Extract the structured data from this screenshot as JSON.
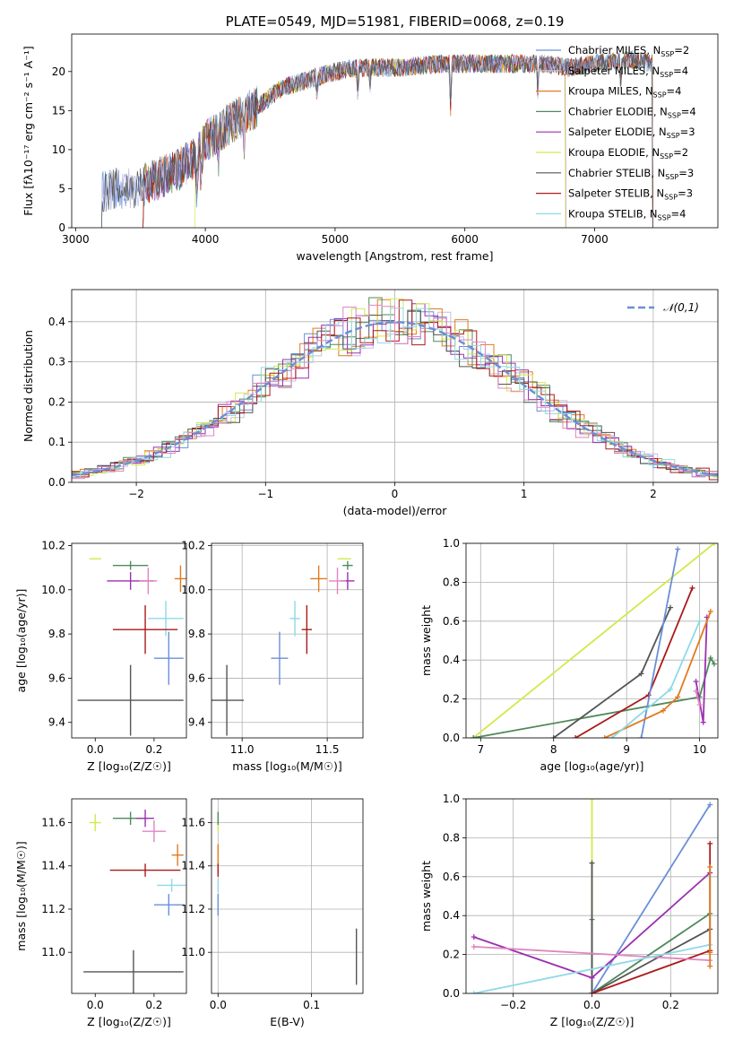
{
  "colors": {
    "chabrier_miles": "#6a8fd8",
    "salpeter_miles": "#c8bfe0",
    "kroupa_miles": "#e07b20",
    "chabrier_elodie": "#4f8a5b",
    "salpeter_elodie": "#9b30b0",
    "kroupa_elodie": "#d4e84c",
    "chabrier_stelib": "#555555",
    "salpeter_stelib": "#aa1a1a",
    "kroupa_stelib": "#8fd9e6",
    "pink": "#e085c0",
    "grid": "#b0b0b0",
    "gaussian": "#6a8fd8"
  },
  "chart_data": [
    {
      "id": "spectrum",
      "type": "line",
      "title": "PLATE=0549, MJD=51981, FIBERID=0068, z=0.19",
      "xlabel": "wavelength [Angstrom, rest frame]",
      "ylabel": "Flux [f",
      "ylabel_full": "Flux [fλ10⁻¹⁷ erg cm⁻² s⁻¹ A⁻¹]",
      "xlim": [
        2970,
        7950
      ],
      "ylim": [
        0,
        24.8
      ],
      "xticks": [
        3000,
        4000,
        5000,
        6000,
        7000
      ],
      "yticks": [
        0,
        5,
        10,
        15,
        20
      ],
      "grid": false,
      "legend_position": "right",
      "legend": [
        "Chabrier MILES, N_SSP=2",
        "Salpeter MILES, N_SSP=4",
        "Kroupa MILES, N_SSP=4",
        "Chabrier ELODIE, N_SSP=4",
        "Salpeter ELODIE, N_SSP=3",
        "Kroupa ELODIE, N_SSP=2",
        "Chabrier STELIB, N_SSP=3",
        "Salpeter STELIB, N_SSP=3",
        "Kroupa STELIB, N_SSP=4"
      ],
      "legend_labels": [
        {
          "text": "Chabrier MILES, N",
          "n": "2"
        },
        {
          "text": "Salpeter MILES, N",
          "n": "4"
        },
        {
          "text": "Kroupa MILES, N",
          "n": "4"
        },
        {
          "text": "Chabrier ELODIE, N",
          "n": "4"
        },
        {
          "text": "Salpeter ELODIE, N",
          "n": "3"
        },
        {
          "text": "Kroupa ELODIE, N",
          "n": "2"
        },
        {
          "text": "Chabrier STELIB, N",
          "n": "3"
        },
        {
          "text": "Salpeter STELIB, N",
          "n": "3"
        },
        {
          "text": "Kroupa STELIB, N",
          "n": "4"
        }
      ],
      "legend_colors": [
        "#6a8fd8",
        "#c8bfe0",
        "#e07b20",
        "#4f8a5b",
        "#9b30b0",
        "#d4e84c",
        "#555555",
        "#aa1a1a",
        "#8fd9e6"
      ],
      "continuum": {
        "x": [
          3200,
          3300,
          3450,
          3600,
          3800,
          3950,
          4000,
          4200,
          4400,
          4600,
          4800,
          5000,
          5200,
          5500,
          5800,
          6000,
          6300,
          6600,
          6800,
          7000,
          7300,
          7450
        ],
        "y": [
          4.5,
          5.0,
          5.0,
          6.0,
          7.5,
          9.5,
          11.0,
          13.5,
          15.5,
          18.0,
          19.0,
          20.0,
          20.5,
          20.5,
          21.0,
          21.0,
          21.0,
          21.0,
          20.5,
          21.0,
          21.5,
          21.0
        ]
      },
      "model_ranges": [
        [
          3200,
          7450
        ],
        [
          3200,
          7450
        ],
        [
          3520,
          7450
        ],
        [
          3520,
          7450
        ],
        [
          3520,
          6780
        ],
        [
          3920,
          6780
        ],
        [
          3200,
          7450
        ],
        [
          3520,
          7450
        ],
        [
          3520,
          7450
        ]
      ]
    },
    {
      "id": "residuals",
      "type": "histogram",
      "xlabel": "(data-model)/error",
      "ylabel": "Normed distribution",
      "xlim": [
        -2.5,
        2.5
      ],
      "ylim": [
        0,
        0.48
      ],
      "xticks": [
        -2,
        -1,
        0,
        1,
        2
      ],
      "xtick_labels": [
        "−2",
        "−1",
        "0",
        "1",
        "2"
      ],
      "yticks": [
        0.0,
        0.1,
        0.2,
        0.3,
        0.4
      ],
      "ytick_labels": [
        "0.0",
        "0.1",
        "0.2",
        "0.3",
        "0.4"
      ],
      "grid": true,
      "bin_width": 0.1,
      "legend": [
        "𝒩(0,1)"
      ],
      "legend_position": "top-right",
      "gaussian": {
        "mean": 0,
        "sigma": 1
      }
    },
    {
      "id": "age_vs_Z",
      "type": "scatter",
      "xlabel": "Z [log₁₀(Z/Z☉)]",
      "ylabel": "age  [log₁₀(age/yr)]",
      "xlim": [
        -0.08,
        0.31
      ],
      "ylim": [
        9.33,
        10.21
      ],
      "xticks": [
        0.0,
        0.2
      ],
      "xtick_labels": [
        "0.0",
        "0.2"
      ],
      "yticks": [
        9.4,
        9.6,
        9.8,
        10.0,
        10.2
      ],
      "ytick_labels": [
        "9.4",
        "9.6",
        "9.8",
        "10.0",
        "10.2"
      ],
      "grid": false,
      "points": [
        {
          "x": 0.0,
          "xerr": 0.02,
          "y": 10.14,
          "yerr": 0.0,
          "color": "#d4e84c"
        },
        {
          "x": 0.12,
          "xerr": 0.06,
          "y": 10.11,
          "yerr": 0.02,
          "color": "#4f8a5b"
        },
        {
          "x": 0.12,
          "xerr": 0.08,
          "y": 10.04,
          "yerr": 0.04,
          "color": "#9b30b0"
        },
        {
          "x": 0.18,
          "xerr": 0.03,
          "y": 10.04,
          "yerr": 0.06,
          "color": "#e085c0"
        },
        {
          "x": 0.29,
          "xerr": 0.02,
          "y": 10.05,
          "yerr": 0.06,
          "color": "#e07b20"
        },
        {
          "x": 0.24,
          "xerr": 0.06,
          "y": 9.87,
          "yerr": 0.08,
          "color": "#8fd9e6"
        },
        {
          "x": 0.17,
          "xerr": 0.11,
          "y": 9.82,
          "yerr": 0.11,
          "color": "#aa1a1a"
        },
        {
          "x": 0.25,
          "xerr": 0.05,
          "y": 9.69,
          "yerr": 0.12,
          "color": "#6a8fd8"
        },
        {
          "x": 0.12,
          "xerr": 0.18,
          "y": 9.5,
          "yerr": 0.16,
          "color": "#555555"
        }
      ]
    },
    {
      "id": "age_vs_mass",
      "type": "scatter",
      "xlabel": "mass [log₁₀(M/M☉)]",
      "xlim": [
        10.82,
        11.71
      ],
      "ylim": [
        9.33,
        10.21
      ],
      "xticks": [
        11.0,
        11.5
      ],
      "xtick_labels": [
        "11.0",
        "11.5"
      ],
      "yticks": [
        9.4,
        9.6,
        9.8,
        10.0,
        10.2
      ],
      "ytick_labels": [
        "9.4",
        "9.6",
        "9.8",
        "10.0",
        "10.2"
      ],
      "grid": true,
      "points": [
        {
          "x": 11.6,
          "xerr": 0.04,
          "y": 10.14,
          "yerr": 0.0,
          "color": "#d4e84c"
        },
        {
          "x": 11.62,
          "xerr": 0.03,
          "y": 10.11,
          "yerr": 0.02,
          "color": "#4f8a5b"
        },
        {
          "x": 11.62,
          "xerr": 0.04,
          "y": 10.04,
          "yerr": 0.04,
          "color": "#9b30b0"
        },
        {
          "x": 11.56,
          "xerr": 0.05,
          "y": 10.04,
          "yerr": 0.06,
          "color": "#e085c0"
        },
        {
          "x": 11.45,
          "xerr": 0.05,
          "y": 10.05,
          "yerr": 0.06,
          "color": "#e07b20"
        },
        {
          "x": 11.31,
          "xerr": 0.03,
          "y": 9.87,
          "yerr": 0.08,
          "color": "#8fd9e6"
        },
        {
          "x": 11.38,
          "xerr": 0.03,
          "y": 9.82,
          "yerr": 0.11,
          "color": "#aa1a1a"
        },
        {
          "x": 11.22,
          "xerr": 0.05,
          "y": 9.69,
          "yerr": 0.12,
          "color": "#6a8fd8"
        },
        {
          "x": 10.91,
          "xerr": 0.1,
          "y": 9.5,
          "yerr": 0.16,
          "color": "#555555"
        }
      ]
    },
    {
      "id": "massweight_vs_age",
      "type": "line",
      "xlabel": "age  [log₁₀(age/yr)]",
      "ylabel": "mass weight",
      "xlim": [
        6.8,
        10.25
      ],
      "ylim": [
        0,
        1
      ],
      "xticks": [
        7,
        8,
        9,
        10
      ],
      "xtick_labels": [
        "7",
        "8",
        "9",
        "10"
      ],
      "yticks": [
        0,
        0.2,
        0.4,
        0.6,
        0.8,
        1.0
      ],
      "ytick_labels": [
        "0.0",
        "0.2",
        "0.4",
        "0.6",
        "0.8",
        "1.0"
      ],
      "grid": true,
      "series": [
        {
          "color": "#d4e84c",
          "x": [
            6.9,
            10.2
          ],
          "y": [
            0.0,
            1.0
          ]
        },
        {
          "color": "#4f8a5b",
          "x": [
            6.9,
            10.0,
            10.15,
            10.2
          ],
          "y": [
            0.0,
            0.21,
            0.41,
            0.38
          ]
        },
        {
          "color": "#555555",
          "x": [
            8.0,
            9.2,
            9.6
          ],
          "y": [
            0.0,
            0.33,
            0.67
          ]
        },
        {
          "color": "#aa1a1a",
          "x": [
            8.3,
            9.3,
            9.9
          ],
          "y": [
            0.0,
            0.22,
            0.77
          ]
        },
        {
          "color": "#6a8fd8",
          "x": [
            9.2,
            9.7
          ],
          "y": [
            0.0,
            0.97
          ]
        },
        {
          "color": "#9b30b0",
          "x": [
            9.95,
            10.05,
            10.1
          ],
          "y": [
            0.29,
            0.08,
            0.62
          ]
        },
        {
          "color": "#e07b20",
          "x": [
            8.7,
            9.5,
            9.7,
            10.15
          ],
          "y": [
            0.0,
            0.14,
            0.21,
            0.65
          ]
        },
        {
          "color": "#8fd9e6",
          "x": [
            8.8,
            9.6,
            10.0
          ],
          "y": [
            0.0,
            0.25,
            0.6
          ]
        },
        {
          "color": "#e085c0",
          "x": [
            9.95,
            10.0
          ],
          "y": [
            0.24,
            0.17
          ]
        }
      ]
    },
    {
      "id": "mass_vs_Z",
      "type": "scatter",
      "xlabel": "Z [log₁₀(Z/Z☉)]",
      "ylabel": "mass [log₁₀(M/M☉)]",
      "xlim": [
        -0.08,
        0.31
      ],
      "ylim": [
        10.81,
        11.71
      ],
      "xticks": [
        0.0,
        0.2
      ],
      "xtick_labels": [
        "0.0",
        "0.2"
      ],
      "yticks": [
        11.0,
        11.2,
        11.4,
        11.6
      ],
      "ytick_labels": [
        "11.0",
        "11.2",
        "11.4",
        "11.6"
      ],
      "grid": false,
      "points": [
        {
          "x": 0.0,
          "xerr": 0.02,
          "y": 11.6,
          "yerr": 0.04,
          "color": "#d4e84c"
        },
        {
          "x": 0.12,
          "xerr": 0.06,
          "y": 11.62,
          "yerr": 0.03,
          "color": "#4f8a5b"
        },
        {
          "x": 0.17,
          "xerr": 0.03,
          "y": 11.62,
          "yerr": 0.04,
          "color": "#9b30b0"
        },
        {
          "x": 0.2,
          "xerr": 0.04,
          "y": 11.56,
          "yerr": 0.05,
          "color": "#e085c0"
        },
        {
          "x": 0.28,
          "xerr": 0.02,
          "y": 11.45,
          "yerr": 0.05,
          "color": "#e07b20"
        },
        {
          "x": 0.26,
          "xerr": 0.05,
          "y": 11.31,
          "yerr": 0.03,
          "color": "#8fd9e6"
        },
        {
          "x": 0.17,
          "xerr": 0.12,
          "y": 11.38,
          "yerr": 0.03,
          "color": "#aa1a1a"
        },
        {
          "x": 0.25,
          "xerr": 0.05,
          "y": 11.22,
          "yerr": 0.05,
          "color": "#6a8fd8"
        },
        {
          "x": 0.13,
          "xerr": 0.17,
          "y": 10.91,
          "yerr": 0.1,
          "color": "#555555"
        }
      ]
    },
    {
      "id": "mass_vs_ebv",
      "type": "scatter",
      "xlabel": "E(B-V)",
      "xlim": [
        -0.007,
        0.155
      ],
      "ylim": [
        10.81,
        11.71
      ],
      "xticks": [
        0.0,
        0.1
      ],
      "xtick_labels": [
        "0.0",
        "0.1"
      ],
      "yticks": [
        11.0,
        11.2,
        11.4,
        11.6
      ],
      "ytick_labels": [
        "11.0",
        "11.2",
        "11.4",
        "11.6"
      ],
      "grid": true,
      "points": [
        {
          "x": 0.0,
          "xerr": 0.0,
          "y": 11.6,
          "yerr": 0.04,
          "color": "#d4e84c"
        },
        {
          "x": 0.0,
          "xerr": 0.0,
          "y": 11.62,
          "yerr": 0.03,
          "color": "#4f8a5b"
        },
        {
          "x": 0.0,
          "xerr": 0.0,
          "y": 11.45,
          "yerr": 0.05,
          "color": "#e07b20"
        },
        {
          "x": 0.0,
          "xerr": 0.0,
          "y": 11.38,
          "yerr": 0.03,
          "color": "#aa1a1a"
        },
        {
          "x": 0.0,
          "xerr": 0.0,
          "y": 11.31,
          "yerr": 0.03,
          "color": "#8fd9e6"
        },
        {
          "x": 0.0,
          "xerr": 0.0,
          "y": 11.22,
          "yerr": 0.05,
          "color": "#6a8fd8"
        },
        {
          "x": 0.148,
          "xerr": 0.0,
          "y": 10.98,
          "yerr": 0.13,
          "color": "#555555"
        }
      ]
    },
    {
      "id": "massweight_vs_Z",
      "type": "line",
      "xlabel": "Z [log₁₀(Z/Z☉)]",
      "ylabel": "mass weight",
      "xlim": [
        -0.32,
        0.32
      ],
      "ylim": [
        0,
        1
      ],
      "xticks": [
        -0.2,
        0.0,
        0.2
      ],
      "xtick_labels": [
        "−0.2",
        "0.0",
        "0.2"
      ],
      "yticks": [
        0,
        0.2,
        0.4,
        0.6,
        0.8,
        1.0
      ],
      "ytick_labels": [
        "0.0",
        "0.2",
        "0.4",
        "0.6",
        "0.8",
        "1.0"
      ],
      "grid": true,
      "series": [
        {
          "color": "#d4e84c",
          "x": [
            0.0,
            0.0
          ],
          "y": [
            0.0,
            1.0
          ]
        },
        {
          "color": "#4f8a5b",
          "x": [
            0.0,
            0.0,
            0.3
          ],
          "y": [
            0.38,
            0.0,
            0.41
          ]
        },
        {
          "color": "#555555",
          "x": [
            0.0,
            0.0,
            0.3
          ],
          "y": [
            0.67,
            0.0,
            0.33
          ]
        },
        {
          "color": "#6a8fd8",
          "x": [
            0.0,
            0.3
          ],
          "y": [
            0.0,
            0.97
          ]
        },
        {
          "color": "#aa1a1a",
          "x": [
            0.0,
            0.3,
            0.3
          ],
          "y": [
            0.0,
            0.22,
            0.77
          ]
        },
        {
          "color": "#9b30b0",
          "x": [
            -0.3,
            0.0,
            0.3
          ],
          "y": [
            0.29,
            0.08,
            0.62
          ]
        },
        {
          "color": "#e085c0",
          "x": [
            -0.3,
            0.3
          ],
          "y": [
            0.24,
            0.17
          ]
        },
        {
          "color": "#8fd9e6",
          "x": [
            -0.3,
            0.3,
            0.3
          ],
          "y": [
            0.0,
            0.25,
            0.6
          ]
        },
        {
          "color": "#e07b20",
          "x": [
            0.3,
            0.3,
            0.3
          ],
          "y": [
            0.14,
            0.21,
            0.65
          ]
        }
      ]
    }
  ]
}
